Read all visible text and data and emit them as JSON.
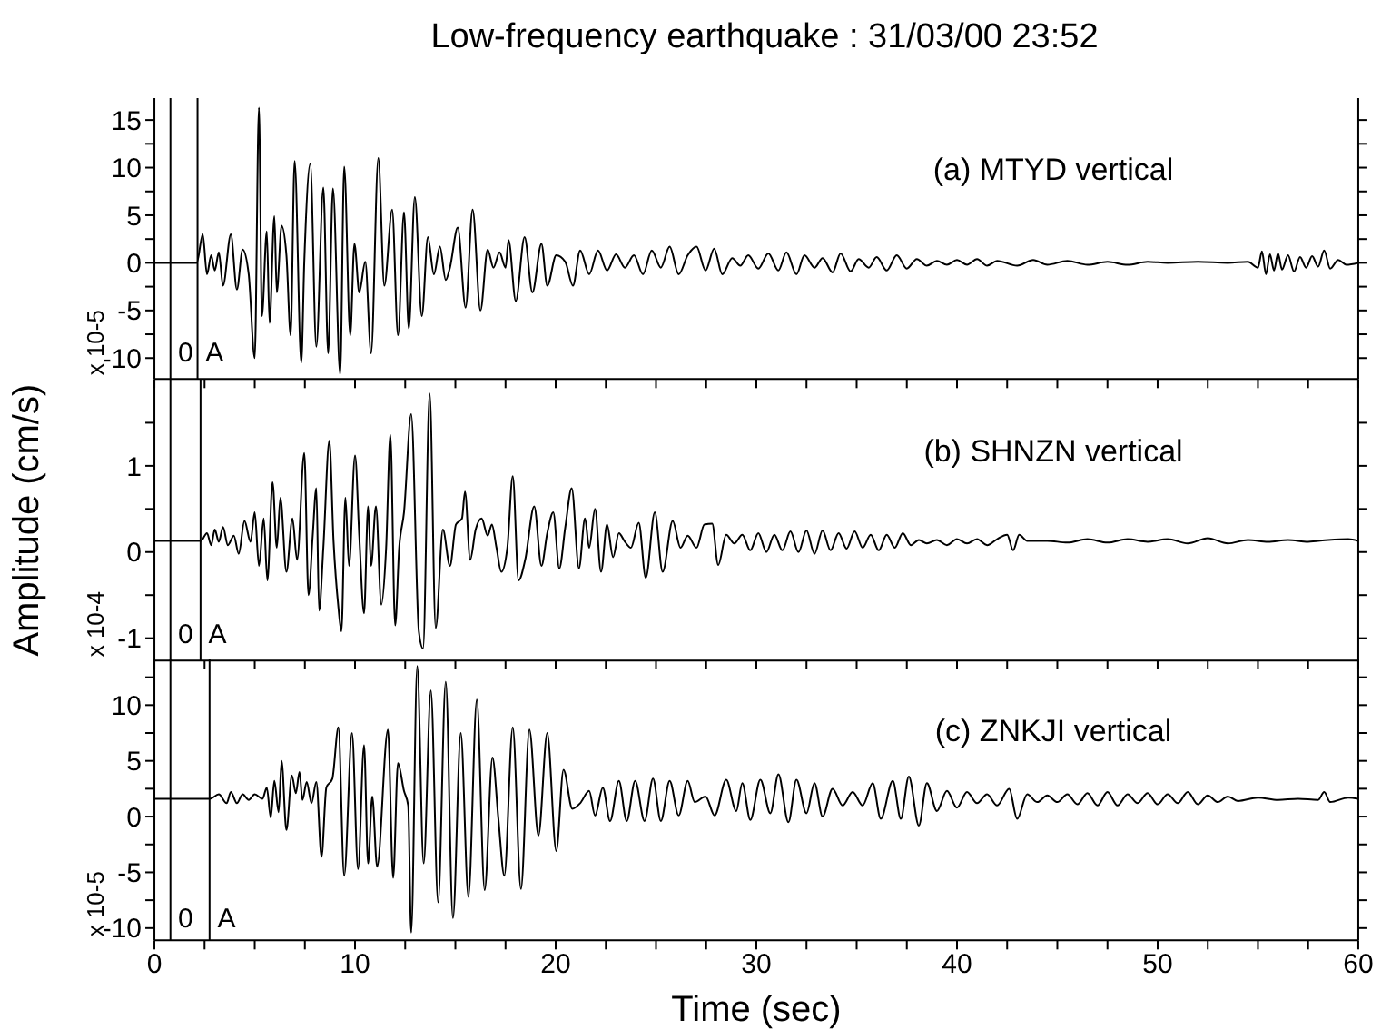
{
  "chart_data": [
    {
      "type": "line",
      "title": "Low-frequency earthquake : 31/03/00 23:52",
      "annotations": [
        "(a) MTYD vertical",
        "x 10-5",
        {
          "text": "0",
          "x": 0.8,
          "y": -10.4
        },
        {
          "text": "A",
          "x": 2.15,
          "y": -10.4
        }
      ],
      "xlim": [
        0,
        60
      ],
      "xticks": [
        0,
        {
          "value": 2.5,
          "label": null
        },
        {
          "value": 5,
          "label": null
        },
        {
          "value": 7.5,
          "label": null
        },
        10,
        {
          "value": 12.5,
          "label": null
        },
        {
          "value": 15,
          "label": null
        },
        {
          "value": 17.5,
          "label": null
        },
        20,
        {
          "value": 22.5,
          "label": null
        },
        {
          "value": 25,
          "label": null
        },
        {
          "value": 27.5,
          "label": null
        },
        30,
        {
          "value": 32.5,
          "label": null
        },
        {
          "value": 35,
          "label": null
        },
        {
          "value": 37.5,
          "label": null
        },
        40,
        {
          "value": 42.5,
          "label": null
        },
        {
          "value": 45,
          "label": null
        },
        {
          "value": 47.5,
          "label": null
        },
        50,
        {
          "value": 52.5,
          "label": null
        },
        {
          "value": 55,
          "label": null
        },
        {
          "value": 57.5,
          "label": null
        },
        60
      ],
      "ylim": [
        -12.2,
        17.3
      ],
      "yticks": [
        -10,
        {
          "value": -7.5,
          "label": null
        },
        -5,
        {
          "value": -2.5,
          "label": null
        },
        0,
        {
          "value": 2.5,
          "label": null
        },
        5,
        {
          "value": 7.5,
          "label": null
        },
        10,
        {
          "value": 12.5,
          "label": null
        },
        15
      ],
      "tick_labels": "y",
      "ref_lines": [
        {
          "axis": "x",
          "value": 0.8
        },
        {
          "axis": "x",
          "value": 2.15
        }
      ],
      "series": [
        {
          "color": "#000000",
          "x": [
            0,
            2.11,
            2.41,
            2.62,
            2.83,
            3.01,
            3.21,
            3.42,
            3.81,
            4.11,
            4.4,
            4.7,
            5.0,
            5.21,
            5.36,
            5.6,
            5.74,
            5.98,
            6.1,
            6.34,
            6.58,
            6.79,
            6.99,
            7.32,
            7.47,
            7.77,
            8.07,
            8.42,
            8.66,
            8.9,
            9.26,
            9.46,
            9.76,
            9.97,
            10.21,
            10.51,
            10.8,
            11.16,
            11.46,
            11.85,
            12.14,
            12.44,
            12.68,
            12.98,
            13.33,
            13.63,
            13.93,
            14.23,
            14.52,
            14.73,
            15.12,
            15.51,
            15.86,
            16.25,
            16.61,
            16.9,
            17.2,
            17.5,
            17.65,
            18.01,
            18.45,
            18.84,
            19.29,
            19.58,
            20.03,
            20.48,
            20.86,
            21.22,
            21.67,
            22.11,
            22.56,
            23.01,
            23.45,
            23.9,
            24.35,
            24.79,
            25.24,
            25.68,
            26.13,
            26.58,
            27.02,
            27.47,
            27.9,
            28.3,
            28.8,
            29.2,
            29.6,
            30.1,
            30.6,
            31.1,
            31.5,
            32.0,
            32.4,
            32.9,
            33.3,
            33.8,
            34.2,
            34.7,
            35.1,
            35.6,
            36.0,
            36.5,
            37.0,
            37.5,
            38.0,
            38.5,
            39.0,
            39.5,
            40.0,
            40.5,
            41.0,
            41.5,
            42.0,
            43.0,
            43.8,
            44.5,
            45.5,
            46.5,
            47.5,
            48.5,
            49.5,
            50.5,
            52,
            53.5,
            54.5,
            55.0,
            55.2,
            55.4,
            55.6,
            55.8,
            56.0,
            56.2,
            56.5,
            56.8,
            57.1,
            57.4,
            57.7,
            58.0,
            58.3,
            58.6,
            59.0,
            59.4,
            60
          ],
          "values": [
            0,
            0,
            3.0,
            -1.2,
            0.8,
            -0.8,
            1.1,
            -2.4,
            3.0,
            -2.8,
            1.4,
            -1.2,
            -10.0,
            16.3,
            -5.6,
            3.3,
            -6.3,
            4.9,
            -3.1,
            3.9,
            0.8,
            -7.6,
            10.7,
            -10.5,
            0.1,
            10.4,
            -8.8,
            7.9,
            -9.5,
            7.8,
            -11.7,
            10.1,
            -7.6,
            2.0,
            -3.1,
            0.1,
            -9.5,
            11.0,
            -2.4,
            5.6,
            -7.6,
            5.3,
            -6.9,
            6.9,
            -5.6,
            2.7,
            -1.2,
            1.7,
            -1.8,
            -0.5,
            3.7,
            -4.7,
            5.6,
            -5.0,
            1.4,
            -0.5,
            1.1,
            -0.5,
            2.4,
            -4.0,
            2.7,
            -3.1,
            2.0,
            -2.4,
            0.8,
            0.1,
            -2.4,
            1.3,
            -1.2,
            1.3,
            -0.8,
            0.9,
            -0.5,
            0.8,
            -1.2,
            1.3,
            -0.5,
            1.7,
            -1.2,
            0.8,
            1.7,
            -0.8,
            1.5,
            -1.2,
            0.5,
            -0.3,
            0.8,
            -0.6,
            1.0,
            -0.8,
            1.1,
            -1.2,
            0.8,
            -0.5,
            0.5,
            -1.0,
            1.0,
            -0.9,
            0.4,
            -0.5,
            0.6,
            -0.8,
            0.8,
            -0.6,
            0.4,
            -0.3,
            0.2,
            -0.2,
            0.3,
            -0.2,
            0.4,
            -0.3,
            0.2,
            -0.3,
            0.3,
            -0.2,
            0.2,
            -0.2,
            0.1,
            -0.2,
            0.1,
            0,
            0.1,
            0,
            0.1,
            -0.5,
            1.2,
            -1.2,
            0.9,
            -0.8,
            1.0,
            -0.7,
            0.8,
            -0.9,
            0.6,
            -0.5,
            0.7,
            -0.4,
            1.3,
            -0.6,
            0.3,
            -0.2,
            0
          ]
        }
      ]
    },
    {
      "type": "line",
      "ylabel": "Amplitude (cm/s)",
      "annotations": [
        "(b) SHNZN vertical",
        "x 10-4",
        {
          "text": "0",
          "x": 0.8,
          "y": -1.06
        },
        {
          "text": "A",
          "x": 2.3,
          "y": -1.06
        }
      ],
      "xlim": [
        0,
        60
      ],
      "xticks": [
        0,
        {
          "value": 2.5,
          "label": null
        },
        {
          "value": 5,
          "label": null
        },
        {
          "value": 7.5,
          "label": null
        },
        10,
        {
          "value": 12.5,
          "label": null
        },
        {
          "value": 15,
          "label": null
        },
        {
          "value": 17.5,
          "label": null
        },
        20,
        {
          "value": 22.5,
          "label": null
        },
        {
          "value": 25,
          "label": null
        },
        {
          "value": 27.5,
          "label": null
        },
        30,
        {
          "value": 32.5,
          "label": null
        },
        {
          "value": 35,
          "label": null
        },
        {
          "value": 37.5,
          "label": null
        },
        40,
        {
          "value": 42.5,
          "label": null
        },
        {
          "value": 45,
          "label": null
        },
        {
          "value": 47.5,
          "label": null
        },
        50,
        {
          "value": 52.5,
          "label": null
        },
        {
          "value": 55,
          "label": null
        },
        {
          "value": 57.5,
          "label": null
        },
        60
      ],
      "ylim": [
        -1.26,
        2.0
      ],
      "yticks": [
        -1,
        {
          "value": -0.5,
          "label": null
        },
        0,
        {
          "value": 0.5,
          "label": null
        },
        1,
        {
          "value": 1.5,
          "label": null
        }
      ],
      "tick_labels": "y",
      "ref_lines": [
        {
          "axis": "x",
          "value": 0.8
        },
        {
          "axis": "x",
          "value": 2.3
        }
      ],
      "series": [
        {
          "color": "#000000",
          "x": [
            0,
            2.32,
            2.62,
            2.83,
            3.01,
            3.21,
            3.42,
            3.66,
            3.96,
            4.2,
            4.49,
            4.79,
            5.0,
            5.21,
            5.45,
            5.63,
            5.89,
            6.1,
            6.28,
            6.58,
            6.88,
            7.11,
            7.47,
            7.68,
            7.89,
            8.07,
            8.21,
            8.42,
            8.72,
            8.93,
            9.17,
            9.32,
            9.52,
            9.7,
            10.0,
            10.21,
            10.45,
            10.65,
            10.8,
            11.04,
            11.31,
            11.55,
            11.76,
            12.0,
            12.2,
            12.44,
            12.8,
            13.18,
            13.39,
            13.72,
            14.02,
            14.38,
            14.73,
            15.03,
            15.33,
            15.48,
            15.74,
            16.01,
            16.31,
            16.61,
            16.82,
            17.05,
            17.29,
            17.59,
            17.86,
            18.15,
            18.48,
            18.93,
            19.29,
            19.58,
            19.88,
            20.18,
            20.48,
            20.8,
            21.16,
            21.46,
            21.67,
            21.96,
            22.26,
            22.56,
            22.86,
            23.15,
            23.45,
            23.75,
            24.14,
            24.49,
            24.94,
            25.33,
            25.83,
            26.22,
            26.58,
            27.02,
            27.41,
            27.8,
            28.1,
            28.5,
            28.9,
            29.3,
            29.7,
            30.1,
            30.5,
            30.9,
            31.3,
            31.7,
            32.1,
            32.5,
            32.9,
            33.3,
            33.7,
            34.1,
            34.5,
            34.9,
            35.3,
            35.7,
            36.1,
            36.5,
            36.9,
            37.3,
            37.7,
            38.1,
            38.5,
            39,
            39.5,
            40,
            40.5,
            41,
            41.5,
            42,
            42.5,
            42.8,
            43.1,
            43.5,
            44.5,
            45.5,
            46.5,
            47.5,
            48.5,
            49.5,
            50.5,
            51.5,
            52.5,
            53.5,
            54.5,
            55.5,
            56.5,
            57.5,
            58.5,
            59.5,
            60
          ],
          "values": [
            0.13,
            0.13,
            0.22,
            0.08,
            0.26,
            0.12,
            0.29,
            0.08,
            0.19,
            -0.02,
            0.36,
            0.12,
            0.46,
            -0.16,
            0.39,
            -0.33,
            0.81,
            0.05,
            0.63,
            -0.23,
            0.39,
            -0.09,
            1.15,
            -0.5,
            0.19,
            0.74,
            -0.68,
            0.05,
            1.29,
            0.12,
            -0.64,
            -0.92,
            0.63,
            -0.16,
            1.12,
            0.19,
            -0.71,
            0.53,
            -0.16,
            0.53,
            -0.61,
            0.05,
            1.36,
            -0.85,
            0.05,
            0.46,
            1.6,
            -0.92,
            -1.12,
            1.84,
            -0.88,
            0.26,
            -0.16,
            0.32,
            0.39,
            0.7,
            -0.09,
            0.26,
            0.39,
            0.19,
            0.32,
            0.05,
            -0.23,
            0.05,
            0.88,
            -0.33,
            -0.09,
            0.53,
            -0.16,
            0.22,
            0.46,
            -0.19,
            0.29,
            0.74,
            -0.19,
            0.39,
            0.05,
            0.5,
            -0.23,
            0.32,
            -0.06,
            0.22,
            0.12,
            0.05,
            0.34,
            -0.3,
            0.46,
            -0.23,
            0.36,
            0.05,
            0.19,
            0.05,
            0.32,
            0.33,
            -0.15,
            0.2,
            0.1,
            0.2,
            0.02,
            0.22,
            0.0,
            0.2,
            0.02,
            0.24,
            0.0,
            0.25,
            -0.02,
            0.25,
            0.02,
            0.22,
            0.04,
            0.24,
            0.05,
            0.2,
            0.02,
            0.2,
            0.05,
            0.22,
            0.08,
            0.14,
            0.1,
            0.14,
            0.08,
            0.15,
            0.1,
            0.15,
            0.08,
            0.15,
            0.2,
            0.02,
            0.2,
            0.13,
            0.13,
            0.11,
            0.15,
            0.11,
            0.15,
            0.12,
            0.15,
            0.1,
            0.16,
            0.1,
            0.14,
            0.12,
            0.14,
            0.12,
            0.14,
            0.15,
            0.13
          ]
        }
      ]
    },
    {
      "type": "line",
      "xlabel": "Time (sec)",
      "annotations": [
        "(c) ZNKJI vertical",
        "x 10-5",
        {
          "text": "0",
          "x": 0.8,
          "y": -9.9
        },
        {
          "text": "A",
          "x": 2.75,
          "y": -9.9
        }
      ],
      "xlim": [
        0,
        60
      ],
      "xticks": [
        0,
        {
          "value": 2.5,
          "label": null
        },
        {
          "value": 5,
          "label": null
        },
        {
          "value": 7.5,
          "label": null
        },
        10,
        {
          "value": 12.5,
          "label": null
        },
        {
          "value": 15,
          "label": null
        },
        {
          "value": 17.5,
          "label": null
        },
        20,
        {
          "value": 22.5,
          "label": null
        },
        {
          "value": 25,
          "label": null
        },
        {
          "value": 27.5,
          "label": null
        },
        30,
        {
          "value": 32.5,
          "label": null
        },
        {
          "value": 35,
          "label": null
        },
        {
          "value": 37.5,
          "label": null
        },
        40,
        {
          "value": 42.5,
          "label": null
        },
        {
          "value": 45,
          "label": null
        },
        {
          "value": 47.5,
          "label": null
        },
        50,
        {
          "value": 52.5,
          "label": null
        },
        {
          "value": 55,
          "label": null
        },
        {
          "value": 57.5,
          "label": null
        },
        60
      ],
      "ylim": [
        -11.1,
        14.1
      ],
      "yticks": [
        -10,
        {
          "value": -7.5,
          "label": null
        },
        -5,
        {
          "value": -2.5,
          "label": null
        },
        0,
        {
          "value": 2.5,
          "label": null
        },
        5,
        {
          "value": 7.5,
          "label": null
        },
        10,
        {
          "value": 12.5,
          "label": null
        }
      ],
      "ref_lines": [
        {
          "axis": "x",
          "value": 0.8
        },
        {
          "axis": "x",
          "value": 2.75
        }
      ],
      "series": [
        {
          "color": "#000000",
          "x": [
            0,
            2.77,
            3.21,
            3.6,
            3.81,
            4.11,
            4.4,
            4.7,
            5.0,
            5.39,
            5.6,
            5.8,
            5.98,
            6.19,
            6.34,
            6.58,
            6.85,
            7.05,
            7.23,
            7.38,
            7.59,
            7.83,
            8.07,
            8.33,
            8.57,
            8.87,
            9.17,
            9.46,
            9.85,
            10.15,
            10.45,
            10.65,
            10.86,
            11.1,
            11.64,
            11.9,
            12.14,
            12.44,
            12.65,
            12.8,
            13.1,
            13.42,
            13.78,
            14.14,
            14.52,
            14.88,
            15.27,
            15.65,
            16.07,
            16.46,
            16.85,
            17.14,
            17.44,
            17.86,
            18.27,
            18.69,
            19.14,
            19.58,
            20.03,
            20.39,
            20.83,
            21.22,
            21.67,
            21.96,
            22.35,
            22.71,
            23.15,
            23.54,
            23.96,
            24.43,
            24.85,
            25.24,
            25.68,
            26.13,
            26.58,
            26.93,
            27.47,
            27.92,
            28.5,
            29.0,
            29.3,
            29.7,
            30.2,
            30.7,
            31.1,
            31.6,
            32.0,
            32.5,
            32.9,
            33.3,
            33.8,
            34.3,
            34.8,
            35.3,
            35.8,
            36.2,
            36.8,
            37.2,
            37.6,
            38.1,
            38.5,
            39.0,
            39.5,
            40.0,
            40.5,
            41.0,
            41.5,
            42.0,
            42.6,
            43.0,
            43.5,
            44,
            44.5,
            45,
            45.5,
            46,
            46.5,
            47,
            47.5,
            48,
            48.5,
            49,
            49.5,
            50,
            50.5,
            51,
            51.5,
            52,
            52.5,
            53,
            53.5,
            54,
            55,
            56,
            57,
            58,
            58.3,
            58.6,
            59.5,
            60
          ],
          "values": [
            1.6,
            1.6,
            2.0,
            1.2,
            2.2,
            1.2,
            2.0,
            1.5,
            2.0,
            1.6,
            2.6,
            -0.1,
            3.2,
            0.4,
            5.0,
            -1.2,
            3.7,
            2.1,
            4.0,
            1.5,
            3.1,
            1.2,
            3.1,
            -3.6,
            2.6,
            3.4,
            8.0,
            -5.3,
            7.5,
            -4.7,
            6.4,
            -4.2,
            1.8,
            -4.5,
            7.8,
            -5.5,
            4.8,
            2.3,
            1.0,
            -10.4,
            13.5,
            -4.2,
            11.3,
            -7.7,
            12.1,
            -9.1,
            7.5,
            -7.2,
            10.5,
            -6.6,
            5.3,
            -0.1,
            -5.3,
            8.0,
            -6.5,
            7.8,
            -1.7,
            7.5,
            -3.1,
            4.2,
            0.7,
            1.2,
            2.3,
            0.1,
            2.6,
            -0.4,
            3.2,
            -0.4,
            3.2,
            -0.4,
            3.4,
            -0.4,
            3.2,
            0.1,
            3.2,
            1.3,
            1.8,
            0.1,
            3.3,
            0.5,
            3.0,
            -0.3,
            3.3,
            0.3,
            3.8,
            -0.5,
            3.3,
            0.3,
            3.0,
            0.0,
            2.5,
            1.0,
            2.2,
            1.0,
            3.0,
            -0.2,
            3.2,
            -0.2,
            3.6,
            -0.8,
            3.0,
            0.5,
            2.3,
            0.8,
            2.2,
            1.2,
            2.0,
            1.0,
            2.5,
            -0.2,
            2.0,
            1.3,
            1.9,
            1.3,
            2.0,
            1.1,
            2.1,
            1.0,
            2.2,
            1.0,
            2.0,
            1.2,
            2.1,
            1.1,
            2.0,
            1.2,
            2.2,
            1.1,
            1.9,
            1.3,
            1.8,
            1.4,
            1.7,
            1.5,
            1.6,
            1.5,
            2.2,
            1.3,
            1.7,
            1.6
          ]
        }
      ]
    }
  ]
}
